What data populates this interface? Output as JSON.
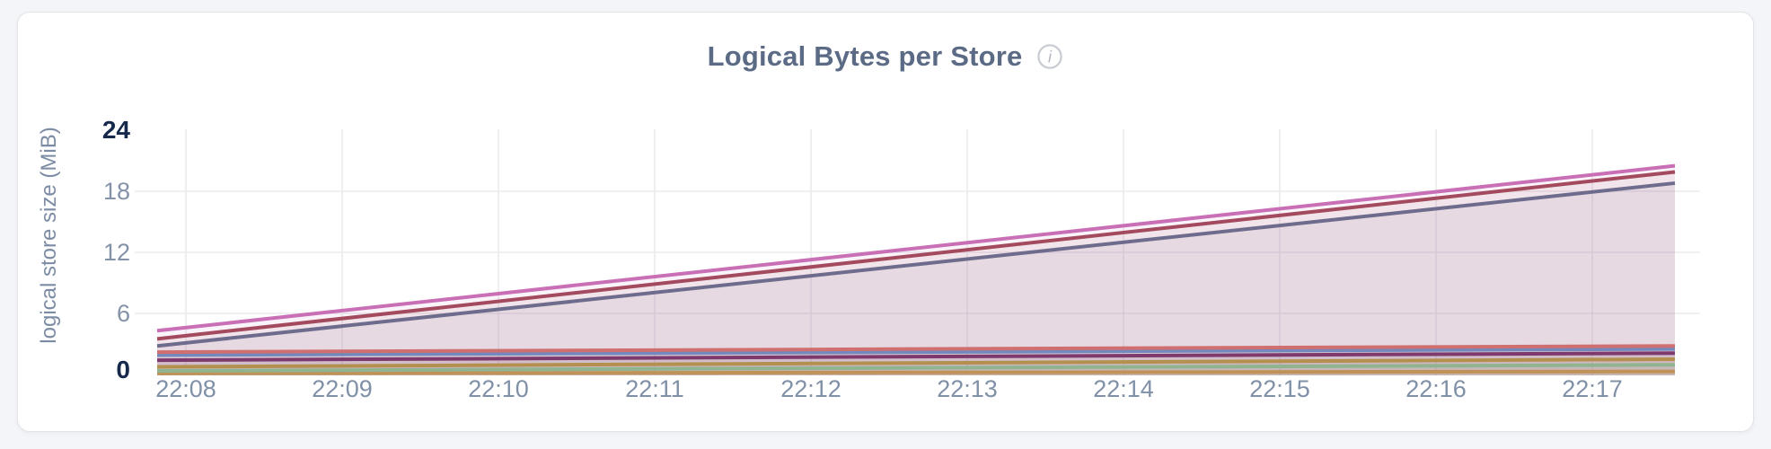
{
  "page": {
    "background_color": "#f4f5f8"
  },
  "card": {
    "background_color": "#ffffff",
    "border_color": "#e1e3e7"
  },
  "header": {
    "title": "Logical Bytes per Store",
    "info_icon": "info-circle"
  },
  "chart_data": {
    "type": "area",
    "title": "Logical Bytes per Store",
    "xlabel": "",
    "ylabel": "logical store size (MiB)",
    "ylim": [
      0,
      24
    ],
    "y_ticks": [
      0,
      6,
      12,
      18,
      24
    ],
    "y_ticks_bold": [
      0,
      24
    ],
    "x_ticks": [
      "22:08",
      "22:09",
      "22:10",
      "22:11",
      "22:12",
      "22:13",
      "22:14",
      "22:15",
      "22:16",
      "22:17"
    ],
    "grid": true,
    "legend_position": "none",
    "series_shape": "straight line from left edge to right edge of plot, translucent fill to baseline",
    "series": [
      {
        "id": "series-1",
        "color": "#c96fb6",
        "start_MiB": 4.3,
        "end_MiB": 20.5
      },
      {
        "id": "series-2",
        "color": "#a34a5e",
        "start_MiB": 3.5,
        "end_MiB": 19.9
      },
      {
        "id": "series-3",
        "color": "#6e6c8d",
        "start_MiB": 2.8,
        "end_MiB": 18.8
      },
      {
        "id": "series-4",
        "color": "#cf6f6f",
        "start_MiB": 2.2,
        "end_MiB": 2.8
      },
      {
        "id": "series-5",
        "color": "#7389bd",
        "start_MiB": 1.9,
        "end_MiB": 2.5
      },
      {
        "id": "series-6",
        "color": "#7e3a6d",
        "start_MiB": 1.4,
        "end_MiB": 2.1
      },
      {
        "id": "series-7",
        "color": "#b3904e",
        "start_MiB": 0.75,
        "end_MiB": 1.5
      },
      {
        "id": "series-8",
        "color": "#90b48f",
        "start_MiB": 0.35,
        "end_MiB": 0.95
      },
      {
        "id": "series-9",
        "color": "#c09257",
        "start_MiB": 0.1,
        "end_MiB": 0.3
      }
    ],
    "style": {
      "grid_color": "#ebebed",
      "fill_opacity": 0.085,
      "tick_label_color": "#8492a8",
      "tick_label_bold_color": "#16294b",
      "title_color": "#5b6b85",
      "axis_title_color": "#7c8ca4",
      "info_icon_color": "#c9cdd3"
    }
  }
}
